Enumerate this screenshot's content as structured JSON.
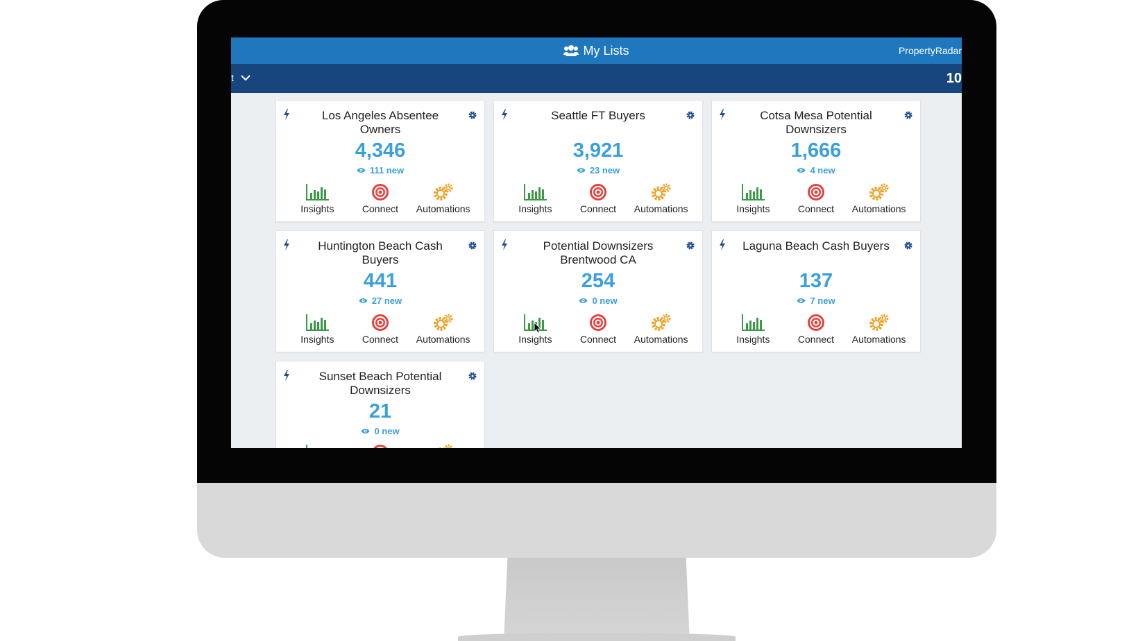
{
  "header": {
    "title": "My Lists",
    "brand": "PropertyRadar"
  },
  "subbar": {
    "left_text": "t",
    "right_text": "10"
  },
  "icons": {
    "title": "users-icon",
    "card_left": "bolt-icon",
    "card_right": "gear-icon",
    "new": "eye-icon",
    "insights": "bar-chart-icon",
    "connect": "target-icon",
    "automations": "gears-icon"
  },
  "colors": {
    "header": "#1f78be",
    "subbar": "#17467e",
    "count": "#3aa0dc",
    "insights": "#3a9a48",
    "connect": "#e2433f",
    "automations": "#f0a32b"
  },
  "cards": [
    {
      "title": "Los Angeles Absentee Owners",
      "count": "4,346",
      "new": "111 new",
      "actions": {
        "insights": "Insights",
        "connect": "Connect",
        "automations": "Automations"
      }
    },
    {
      "title": "Seattle FT Buyers",
      "count": "3,921",
      "new": "23 new",
      "actions": {
        "insights": "Insights",
        "connect": "Connect",
        "automations": "Automations"
      }
    },
    {
      "title": "Cotsa Mesa Potential Downsizers",
      "count": "1,666",
      "new": "4 new",
      "actions": {
        "insights": "Insights",
        "connect": "Connect",
        "automations": "Automations"
      }
    },
    {
      "title": "Huntington Beach Cash Buyers",
      "count": "441",
      "new": "27 new",
      "actions": {
        "insights": "Insights",
        "connect": "Connect",
        "automations": "Automations"
      }
    },
    {
      "title": "Potential Downsizers Brentwood CA",
      "count": "254",
      "new": "0 new",
      "actions": {
        "insights": "Insights",
        "connect": "Connect",
        "automations": "Automations"
      }
    },
    {
      "title": "Laguna Beach Cash Buyers",
      "count": "137",
      "new": "7 new",
      "actions": {
        "insights": "Insights",
        "connect": "Connect",
        "automations": "Automations"
      }
    },
    {
      "title": "Sunset Beach Potential Downsizers",
      "count": "21",
      "new": "0 new",
      "actions": {
        "insights": "Insights",
        "connect": "Connect",
        "automations": "Automations"
      }
    }
  ]
}
